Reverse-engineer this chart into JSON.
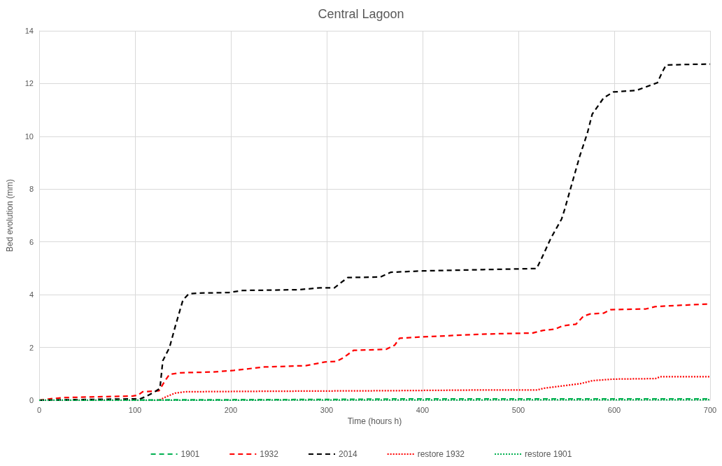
{
  "chart_data": {
    "type": "line",
    "title": "Central Lagoon",
    "xlabel": "Time (hours h)",
    "ylabel": "Bed evolution (mm)",
    "xlim": [
      0,
      700
    ],
    "xticks": [
      0,
      100,
      200,
      300,
      400,
      500,
      600,
      700
    ],
    "ylim": [
      0,
      14
    ],
    "yticks": [
      0,
      2,
      4,
      6,
      8,
      10,
      12,
      14
    ],
    "grid": true,
    "legend": "bottom",
    "marker": "none",
    "series": [
      {
        "name": "1901",
        "color": "#00b050",
        "line_style": "dashed",
        "x": [
          0,
          100,
          200,
          300,
          380,
          500,
          700
        ],
        "values": [
          0,
          0.01,
          0.02,
          0.03,
          0.05,
          0.05,
          0.05
        ]
      },
      {
        "name": "1932",
        "color": "#ff0000",
        "line_style": "dashed",
        "x": [
          0,
          11,
          25,
          98,
          103,
          108,
          125,
          131,
          136,
          147,
          181,
          203,
          235,
          278,
          298,
          310,
          317,
          328,
          362,
          371,
          376,
          400,
          436,
          468,
          506,
          514,
          526,
          538,
          546,
          560,
          568,
          575,
          589,
          596,
          633,
          643,
          665,
          700
        ],
        "values": [
          0,
          0.05,
          0.1,
          0.16,
          0.19,
          0.32,
          0.36,
          0.72,
          0.98,
          1.04,
          1.07,
          1.13,
          1.26,
          1.31,
          1.45,
          1.47,
          1.6,
          1.89,
          1.93,
          2.09,
          2.35,
          2.4,
          2.46,
          2.51,
          2.54,
          2.54,
          2.65,
          2.69,
          2.82,
          2.88,
          3.19,
          3.27,
          3.3,
          3.43,
          3.46,
          3.55,
          3.59,
          3.65
        ]
      },
      {
        "name": "2014",
        "color": "#000000",
        "line_style": "dashed",
        "x": [
          0,
          50,
          100,
          104,
          112,
          122,
          126,
          129,
          136,
          142,
          150,
          156,
          165,
          198,
          212,
          237,
          271,
          293,
          308,
          314,
          322,
          356,
          367,
          400,
          463,
          519,
          524,
          534,
          545,
          548,
          555,
          564,
          572,
          577,
          589,
          599,
          623,
          645,
          650,
          654,
          670,
          700
        ],
        "values": [
          0,
          0.03,
          0.05,
          0.03,
          0.15,
          0.35,
          0.45,
          1.5,
          2.0,
          2.8,
          3.8,
          4.03,
          4.06,
          4.08,
          4.16,
          4.17,
          4.19,
          4.26,
          4.26,
          4.43,
          4.65,
          4.67,
          4.85,
          4.9,
          4.95,
          4.99,
          5.36,
          6.15,
          6.86,
          7.2,
          8.1,
          9.25,
          10.13,
          10.84,
          11.46,
          11.68,
          11.74,
          12.03,
          12.43,
          12.7,
          12.72,
          12.74
        ]
      },
      {
        "name": "restore 1932",
        "color": "#ff0000",
        "line_style": "dotted",
        "x": [
          0,
          120,
          125,
          133,
          142,
          152,
          237,
          361,
          468,
          520,
          526,
          546,
          565,
          577,
          599,
          643,
          648,
          700
        ],
        "values": [
          0,
          0,
          0,
          0.14,
          0.27,
          0.32,
          0.34,
          0.36,
          0.39,
          0.39,
          0.45,
          0.54,
          0.63,
          0.74,
          0.8,
          0.82,
          0.89,
          0.89
        ]
      },
      {
        "name": "restore 1901",
        "color": "#00b050",
        "line_style": "dotted",
        "x": [
          0,
          350,
          700
        ],
        "values": [
          0,
          0.01,
          0.02
        ]
      }
    ]
  }
}
